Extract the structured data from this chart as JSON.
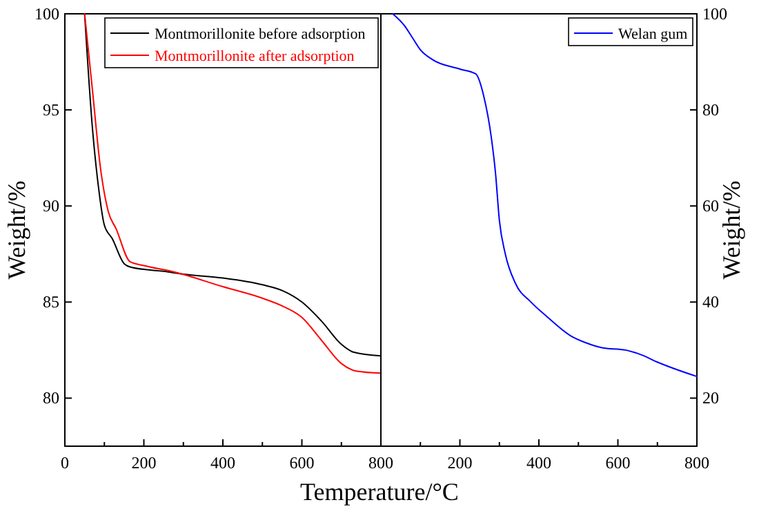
{
  "chart_data": [
    {
      "type": "line",
      "xlabel": "Temperature/°C",
      "ylabel": "Weight/%",
      "xlim": [
        0,
        800
      ],
      "ylim": [
        77.5,
        100
      ],
      "xticks": [
        0,
        {
          "value": 100,
          "label": null
        },
        200,
        {
          "value": 300,
          "label": null
        },
        400,
        {
          "value": 500,
          "label": null
        },
        600,
        {
          "value": 700,
          "label": null
        },
        800
      ],
      "yticks": [
        80,
        85,
        90,
        95,
        100
      ],
      "legend": "top right",
      "grid": false,
      "series": [
        {
          "name": "Montmorillonite before adsorption",
          "color": "#000000",
          "x": [
            50,
            70,
            85,
            100,
            120,
            150,
            170,
            250,
            300,
            400,
            500,
            550,
            600,
            650,
            700,
            730,
            800
          ],
          "values": [
            100,
            94,
            91,
            89,
            88.3,
            87,
            86.8,
            86.6,
            86.45,
            86.25,
            85.9,
            85.6,
            85.0,
            84.0,
            82.8,
            82.4,
            82.2
          ]
        },
        {
          "name": "Montmorillonite after adsorption",
          "color": "#ff0000",
          "x": [
            50,
            70,
            90,
            110,
            130,
            165,
            200,
            280,
            400,
            500,
            550,
            600,
            650,
            700,
            740,
            800
          ],
          "values": [
            100,
            96,
            92,
            89.7,
            88.8,
            87.1,
            86.9,
            86.55,
            85.8,
            85.2,
            84.8,
            84.2,
            83.0,
            81.8,
            81.4,
            81.3
          ]
        }
      ]
    },
    {
      "type": "line",
      "ylabel": "Weight/%",
      "xlim": [
        0,
        800
      ],
      "ylim": [
        10,
        100
      ],
      "xticks": [
        {
          "value": 0,
          "label": null
        },
        {
          "value": 100,
          "label": null
        },
        200,
        {
          "value": 300,
          "label": null
        },
        400,
        {
          "value": 500,
          "label": null
        },
        600,
        {
          "value": 700,
          "label": null
        },
        800
      ],
      "yticks": [
        20,
        40,
        60,
        80,
        100
      ],
      "legend": "top right",
      "grid": false,
      "series": [
        {
          "name": "Welan gum",
          "color": "#0000ff",
          "x": [
            30,
            60,
            80,
            100,
            130,
            200,
            240,
            260,
            280,
            290,
            300,
            315,
            340,
            380,
            420,
            480,
            520,
            560,
            620,
            660,
            700,
            800
          ],
          "values": [
            100,
            97.5,
            95,
            92.5,
            90.5,
            88.5,
            87.5,
            83,
            74,
            67,
            57,
            50,
            44,
            40,
            37,
            33,
            31.5,
            30.5,
            30,
            29,
            27.5,
            24.5
          ]
        }
      ]
    }
  ]
}
